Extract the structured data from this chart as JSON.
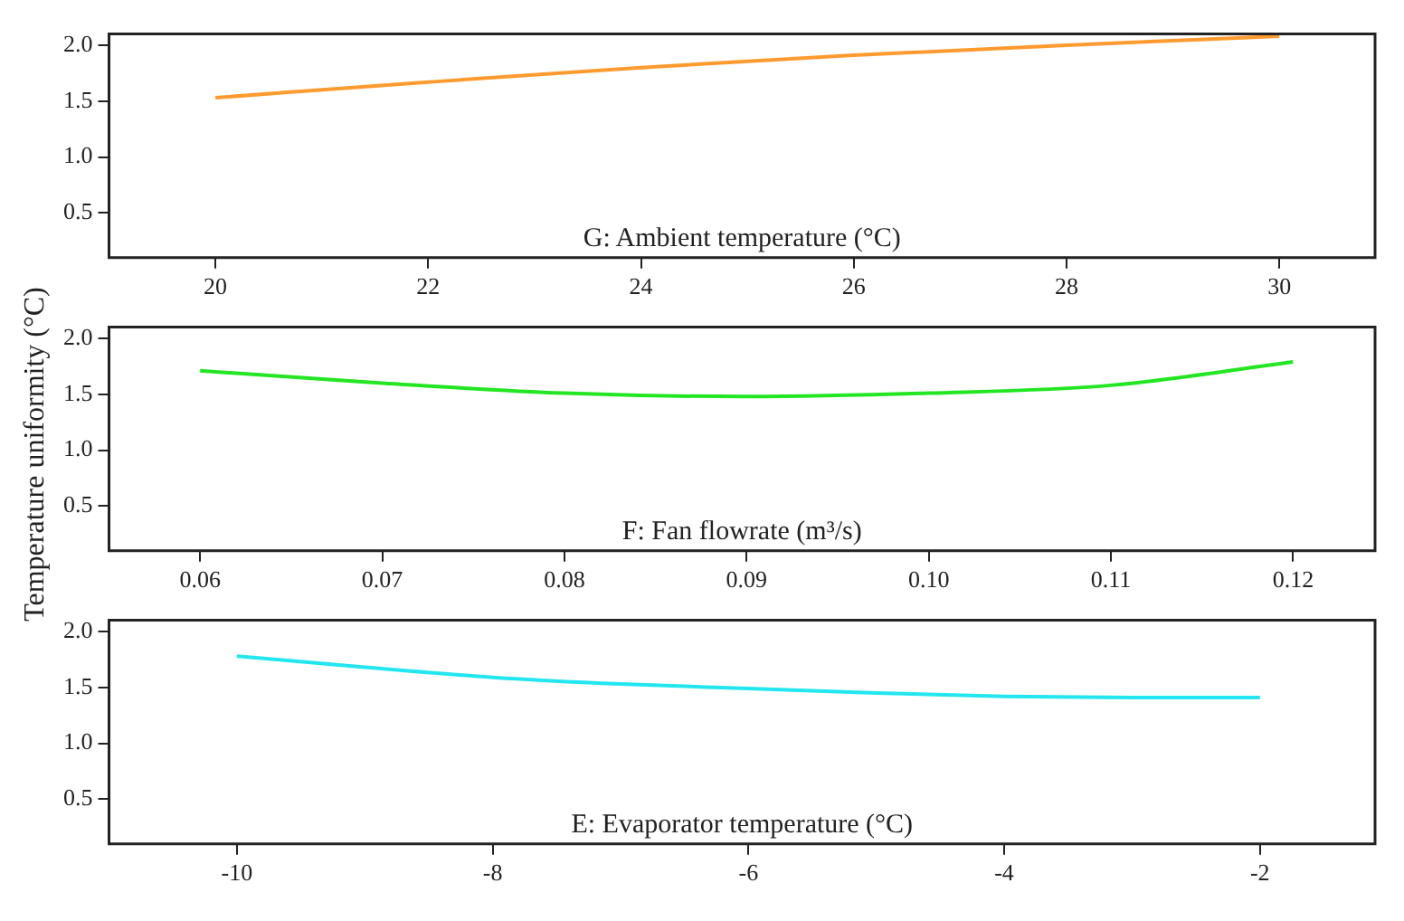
{
  "chart_data": [
    {
      "type": "line",
      "xlabel": "G: Ambient temperature (°C)",
      "x": [
        20,
        22,
        24,
        26,
        28,
        30
      ],
      "series": [
        {
          "color": "#ff9a2e",
          "values": [
            1.53,
            1.67,
            1.8,
            1.91,
            2.0,
            2.08
          ]
        }
      ],
      "xlim": [
        19,
        30.9
      ],
      "xticks": [
        20,
        22,
        24,
        26,
        28,
        30
      ],
      "ylim": [
        0.1,
        2.1
      ],
      "yticks": [
        {
          "value": 0.5,
          "label": "0.5"
        },
        {
          "value": 1,
          "label": "1.0"
        },
        {
          "value": 1.5,
          "label": "1.5"
        },
        {
          "value": 2,
          "label": "2.0"
        }
      ],
      "grid": false,
      "legend": false,
      "marker": "none",
      "line_style": "solid"
    },
    {
      "type": "line",
      "xlabel": "F: Fan flowrate (m³/s)",
      "ylabel": "Temperature uniformity (°C)",
      "x": [
        0.06,
        0.07,
        0.08,
        0.09,
        0.1,
        0.11,
        0.12
      ],
      "series": [
        {
          "color": "#22e622",
          "values": [
            1.71,
            1.6,
            1.51,
            1.48,
            1.51,
            1.58,
            1.79
          ]
        }
      ],
      "xlim": [
        0.055,
        0.1245
      ],
      "xticks": [
        0.06,
        0.07,
        0.08,
        0.09,
        {
          "value": 0.1,
          "label": "0.10"
        },
        0.11,
        0.12
      ],
      "ylim": [
        0.1,
        2.1
      ],
      "yticks": [
        {
          "value": 0.5,
          "label": "0.5"
        },
        {
          "value": 1,
          "label": "1.0"
        },
        {
          "value": 1.5,
          "label": "1.5"
        },
        {
          "value": 2,
          "label": "2.0"
        }
      ],
      "grid": false,
      "legend": false,
      "marker": "none",
      "line_style": "solid"
    },
    {
      "type": "line",
      "xlabel": "E: Evaporator temperature (°C)",
      "x": [
        -10,
        -9,
        -8,
        -7,
        -6,
        -5,
        -4,
        -3,
        -2
      ],
      "series": [
        {
          "color": "#22e6f0",
          "values": [
            1.78,
            1.68,
            1.59,
            1.53,
            1.49,
            1.45,
            1.42,
            1.41,
            1.41
          ]
        }
      ],
      "xlim": [
        -11,
        -1.1
      ],
      "xticks": [
        -10,
        -8,
        -6,
        -4,
        -2
      ],
      "ylim": [
        0.1,
        2.1
      ],
      "yticks": [
        {
          "value": 0.5,
          "label": "0.5"
        },
        {
          "value": 1,
          "label": "1.0"
        },
        {
          "value": 1.5,
          "label": "1.5"
        },
        {
          "value": 2,
          "label": "2.0"
        }
      ],
      "grid": false,
      "legend": false,
      "marker": "none",
      "line_style": "solid"
    }
  ]
}
